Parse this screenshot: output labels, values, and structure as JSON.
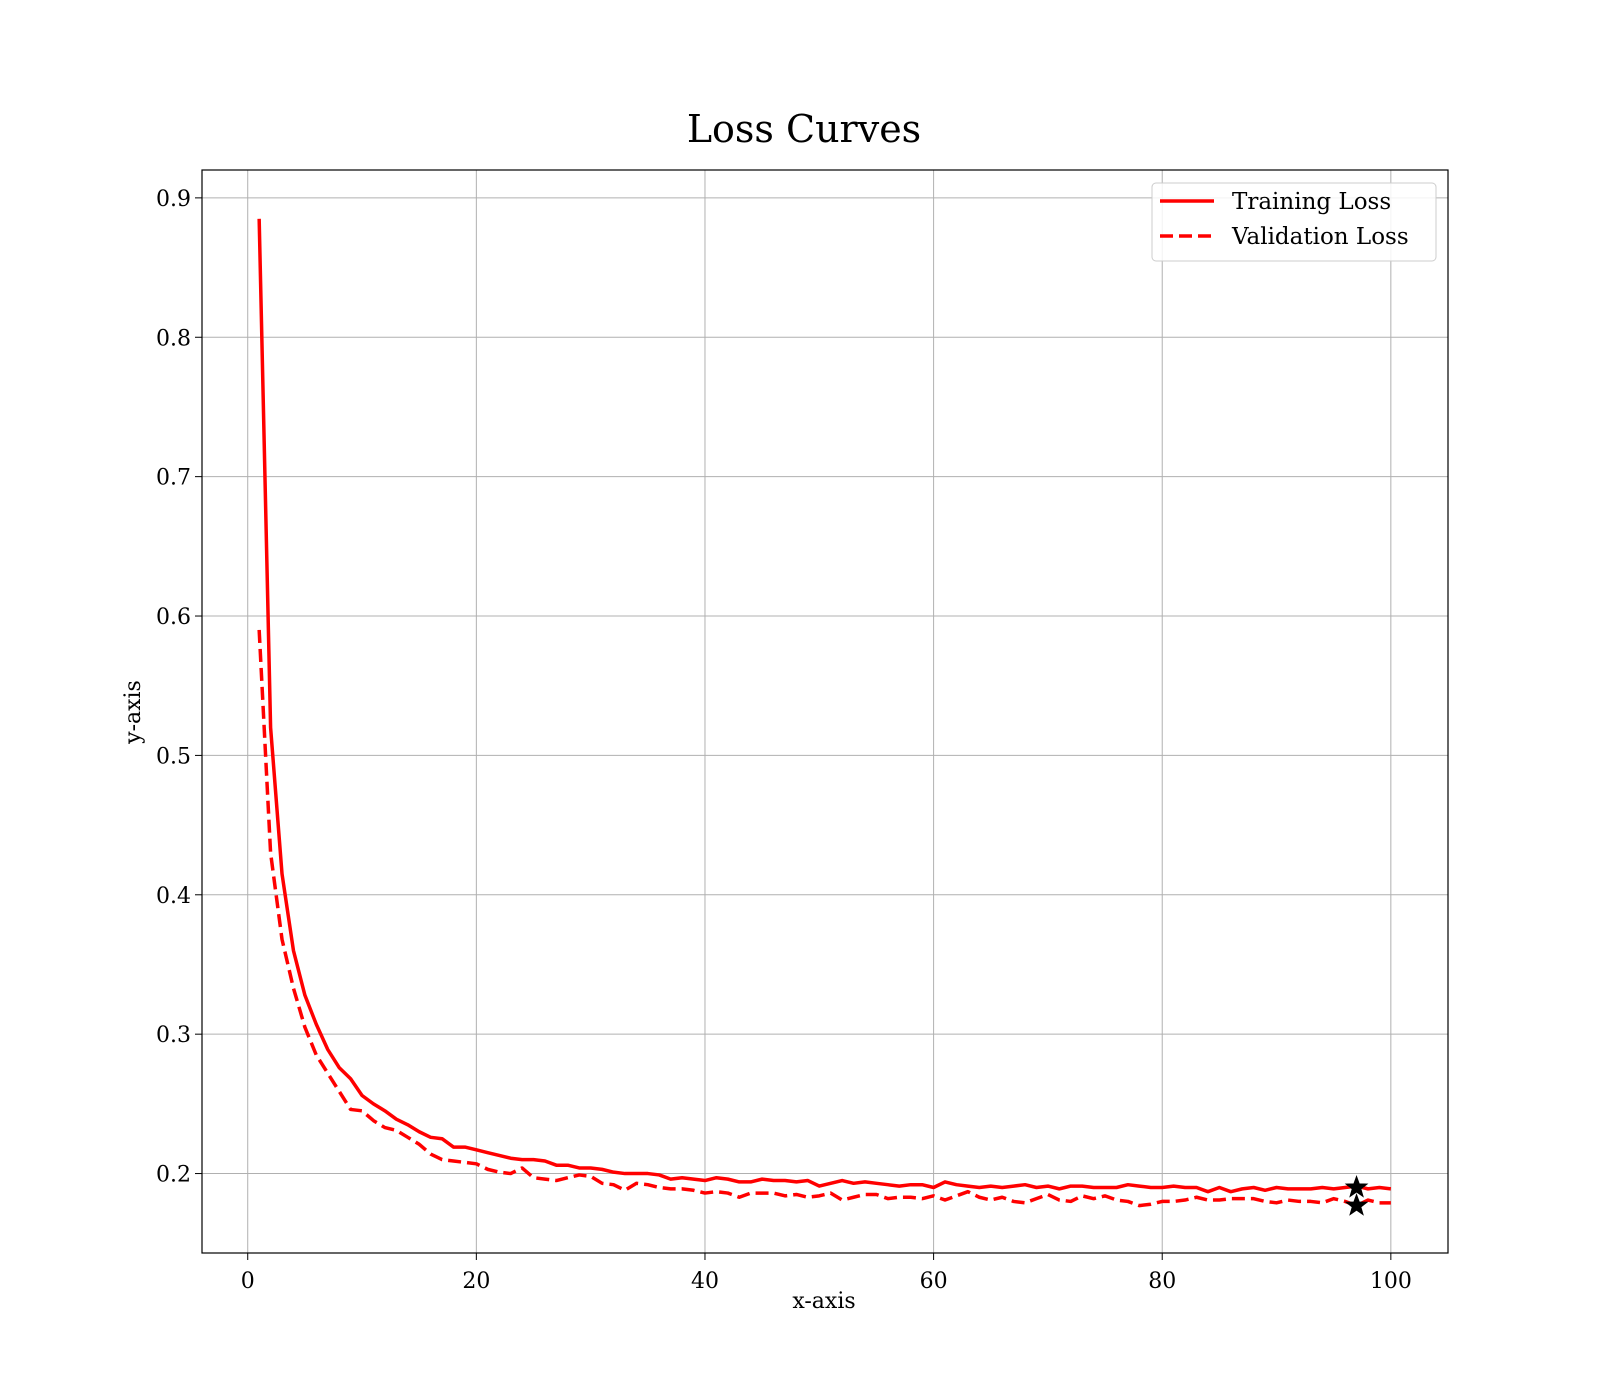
{
  "chart_data": {
    "type": "line",
    "title": "Loss Curves",
    "xlabel": "x-axis",
    "ylabel": "y-axis",
    "xlim": [
      -4,
      105
    ],
    "ylim": [
      0.143,
      0.92
    ],
    "xticks": [
      0,
      20,
      40,
      60,
      80,
      100
    ],
    "yticks": [
      0.2,
      0.3,
      0.4,
      0.5,
      0.6,
      0.7,
      0.8,
      0.9
    ],
    "xtick_labels": [
      "0",
      "20",
      "40",
      "60",
      "80",
      "100"
    ],
    "ytick_labels": [
      "0.2",
      "0.3",
      "0.4",
      "0.5",
      "0.6",
      "0.7",
      "0.8",
      "0.9"
    ],
    "grid": true,
    "legend_position": "top-right",
    "series": [
      {
        "name": "Training Loss",
        "color": "#ff0000",
        "style": "solid",
        "x": [
          1,
          2,
          3,
          4,
          5,
          6,
          7,
          8,
          9,
          10,
          11,
          12,
          13,
          14,
          15,
          16,
          17,
          18,
          19,
          20,
          21,
          22,
          23,
          24,
          25,
          26,
          27,
          28,
          29,
          30,
          31,
          32,
          33,
          34,
          35,
          36,
          37,
          38,
          39,
          40,
          41,
          42,
          43,
          44,
          45,
          46,
          47,
          48,
          49,
          50,
          51,
          52,
          53,
          54,
          55,
          56,
          57,
          58,
          59,
          60,
          61,
          62,
          63,
          64,
          65,
          66,
          67,
          68,
          69,
          70,
          71,
          72,
          73,
          74,
          75,
          76,
          77,
          78,
          79,
          80,
          81,
          82,
          83,
          84,
          85,
          86,
          87,
          88,
          89,
          90,
          91,
          92,
          93,
          94,
          95,
          96,
          97,
          98,
          99,
          100
        ],
        "values": [
          0.885,
          0.52,
          0.415,
          0.36,
          0.328,
          0.307,
          0.289,
          0.276,
          0.268,
          0.256,
          0.25,
          0.245,
          0.239,
          0.235,
          0.23,
          0.226,
          0.225,
          0.219,
          0.219,
          0.217,
          0.215,
          0.213,
          0.211,
          0.21,
          0.21,
          0.209,
          0.206,
          0.206,
          0.204,
          0.204,
          0.203,
          0.201,
          0.2,
          0.2,
          0.2,
          0.199,
          0.196,
          0.197,
          0.196,
          0.195,
          0.197,
          0.196,
          0.194,
          0.194,
          0.196,
          0.195,
          0.195,
          0.194,
          0.195,
          0.191,
          0.193,
          0.195,
          0.193,
          0.194,
          0.193,
          0.192,
          0.191,
          0.192,
          0.192,
          0.19,
          0.194,
          0.192,
          0.191,
          0.19,
          0.191,
          0.19,
          0.191,
          0.192,
          0.19,
          0.191,
          0.189,
          0.191,
          0.191,
          0.19,
          0.19,
          0.19,
          0.192,
          0.191,
          0.19,
          0.19,
          0.191,
          0.19,
          0.19,
          0.187,
          0.19,
          0.187,
          0.189,
          0.19,
          0.188,
          0.19,
          0.189,
          0.189,
          0.189,
          0.19,
          0.189,
          0.19,
          0.191,
          0.189,
          0.19,
          0.189
        ]
      },
      {
        "name": "Validation Loss",
        "color": "#ff0000",
        "style": "dashed",
        "x": [
          1,
          2,
          3,
          4,
          5,
          6,
          7,
          8,
          9,
          10,
          11,
          12,
          13,
          14,
          15,
          16,
          17,
          18,
          19,
          20,
          21,
          22,
          23,
          24,
          25,
          26,
          27,
          28,
          29,
          30,
          31,
          32,
          33,
          34,
          35,
          36,
          37,
          38,
          39,
          40,
          41,
          42,
          43,
          44,
          45,
          46,
          47,
          48,
          49,
          50,
          51,
          52,
          53,
          54,
          55,
          56,
          57,
          58,
          59,
          60,
          61,
          62,
          63,
          64,
          65,
          66,
          67,
          68,
          69,
          70,
          71,
          72,
          73,
          74,
          75,
          76,
          77,
          78,
          79,
          80,
          81,
          82,
          83,
          84,
          85,
          86,
          87,
          88,
          89,
          90,
          91,
          92,
          93,
          94,
          95,
          96,
          97,
          98,
          99,
          100
        ],
        "values": [
          0.59,
          0.43,
          0.368,
          0.333,
          0.305,
          0.285,
          0.272,
          0.259,
          0.246,
          0.245,
          0.238,
          0.233,
          0.231,
          0.226,
          0.221,
          0.214,
          0.21,
          0.209,
          0.208,
          0.207,
          0.203,
          0.201,
          0.2,
          0.204,
          0.197,
          0.196,
          0.195,
          0.197,
          0.199,
          0.198,
          0.193,
          0.192,
          0.188,
          0.193,
          0.192,
          0.19,
          0.189,
          0.189,
          0.188,
          0.186,
          0.187,
          0.186,
          0.183,
          0.186,
          0.186,
          0.186,
          0.184,
          0.185,
          0.183,
          0.184,
          0.186,
          0.181,
          0.183,
          0.185,
          0.185,
          0.182,
          0.183,
          0.183,
          0.182,
          0.184,
          0.181,
          0.184,
          0.187,
          0.183,
          0.181,
          0.183,
          0.18,
          0.179,
          0.182,
          0.185,
          0.181,
          0.18,
          0.184,
          0.182,
          0.184,
          0.181,
          0.18,
          0.177,
          0.178,
          0.18,
          0.18,
          0.181,
          0.183,
          0.181,
          0.181,
          0.182,
          0.182,
          0.182,
          0.18,
          0.179,
          0.181,
          0.18,
          0.18,
          0.179,
          0.182,
          0.18,
          0.177,
          0.181,
          0.179,
          0.179
        ]
      }
    ],
    "markers": [
      {
        "series": "Training Loss",
        "symbol": "star",
        "x": 97,
        "y": 0.19
      },
      {
        "series": "Validation Loss",
        "symbol": "star",
        "x": 97,
        "y": 0.177
      }
    ]
  }
}
